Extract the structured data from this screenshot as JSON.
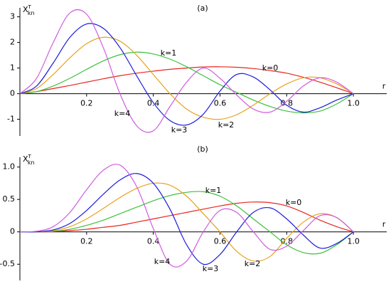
{
  "chart_data": [
    {
      "type": "line",
      "title": "(a)",
      "xlabel": "r",
      "ylabel": "X",
      "ylabel_sup": "T",
      "ylabel_sub": "kn",
      "xlim": [
        0,
        1.1
      ],
      "ylim": [
        -1.65,
        3.35
      ],
      "xticks": [
        0.2,
        0.4,
        0.6,
        0.8,
        {
          "value": 1,
          "label": "1.0"
        }
      ],
      "yticks": [
        -1,
        0,
        1,
        2,
        3
      ],
      "x": [
        0,
        0.05,
        0.1,
        0.15,
        0.2,
        0.25,
        0.3,
        0.35,
        0.4,
        0.45,
        0.5,
        0.55,
        0.6,
        0.65,
        0.7,
        0.75,
        0.8,
        0.85,
        0.9,
        0.95,
        1
      ],
      "series": [
        {
          "name": "k=0",
          "color": "#e8261f",
          "values": [
            0,
            0.08,
            0.2,
            0.32,
            0.45,
            0.58,
            0.7,
            0.8,
            0.88,
            0.95,
            1.0,
            1.04,
            1.05,
            1.03,
            0.98,
            0.9,
            0.8,
            0.64,
            0.45,
            0.23,
            0
          ]
        },
        {
          "name": "k=1",
          "color": "#3cc13c",
          "values": [
            0,
            0.08,
            0.3,
            0.6,
            0.95,
            1.28,
            1.52,
            1.62,
            1.55,
            1.35,
            1.05,
            0.7,
            0.35,
            0.05,
            -0.25,
            -0.5,
            -0.68,
            -0.75,
            -0.68,
            -0.4,
            0
          ]
        },
        {
          "name": "k=2",
          "color": "#e6a21e",
          "values": [
            0,
            0.2,
            0.75,
            1.4,
            1.95,
            2.2,
            2.05,
            1.5,
            0.75,
            0,
            -0.6,
            -0.92,
            -1.0,
            -0.82,
            -0.45,
            0,
            0.38,
            0.62,
            0.62,
            0.38,
            0
          ]
        },
        {
          "name": "k=3",
          "color": "#1c1cd9",
          "values": [
            0,
            0.3,
            1.2,
            2.2,
            2.72,
            2.55,
            1.8,
            0.7,
            -0.35,
            -1.05,
            -1.22,
            -0.8,
            0.1,
            0.75,
            0.65,
            0.15,
            -0.45,
            -0.72,
            -0.55,
            -0.25,
            0
          ]
        },
        {
          "name": "k=4",
          "color": "#d05ce0",
          "values": [
            0,
            0.6,
            2.0,
            3.15,
            3.1,
            1.8,
            0,
            -1.25,
            -1.45,
            -0.5,
            0.45,
            1.0,
            0.6,
            -0.05,
            -0.6,
            -0.72,
            -0.3,
            0.3,
            0.62,
            0.45,
            0
          ]
        }
      ]
    },
    {
      "type": "line",
      "title": "(b)",
      "xlabel": "r",
      "ylabel": "X",
      "ylabel_sup": "T",
      "ylabel_sub": "kn",
      "xlim": [
        0,
        1.1
      ],
      "ylim": [
        -0.75,
        1.15
      ],
      "xticks": [
        0.2,
        0.4,
        0.6,
        0.8,
        {
          "value": 1,
          "label": "1.0"
        }
      ],
      "yticks": [
        -0.5,
        0,
        0.5,
        {
          "value": 1,
          "label": "1.0"
        }
      ],
      "x": [
        0,
        0.05,
        0.1,
        0.15,
        0.2,
        0.25,
        0.3,
        0.35,
        0.4,
        0.45,
        0.5,
        0.55,
        0.6,
        0.65,
        0.7,
        0.75,
        0.8,
        0.85,
        0.9,
        0.95,
        1
      ],
      "series": [
        {
          "name": "k=0",
          "color": "#e8261f",
          "values": [
            0,
            0,
            0.005,
            0.02,
            0.04,
            0.07,
            0.1,
            0.15,
            0.2,
            0.25,
            0.3,
            0.35,
            0.4,
            0.44,
            0.46,
            0.45,
            0.4,
            0.3,
            0.18,
            0.08,
            0
          ]
        },
        {
          "name": "k=1",
          "color": "#3cc13c",
          "values": [
            0,
            0,
            0.01,
            0.04,
            0.1,
            0.18,
            0.28,
            0.38,
            0.48,
            0.56,
            0.61,
            0.62,
            0.55,
            0.4,
            0.2,
            0,
            -0.2,
            -0.32,
            -0.33,
            -0.2,
            0
          ]
        },
        {
          "name": "k=2",
          "color": "#e6a21e",
          "values": [
            0,
            0,
            0.02,
            0.08,
            0.2,
            0.36,
            0.53,
            0.67,
            0.75,
            0.72,
            0.55,
            0.28,
            0,
            -0.3,
            -0.45,
            -0.38,
            -0.1,
            0.15,
            0.28,
            0.22,
            0
          ]
        },
        {
          "name": "k=3",
          "color": "#1c1cd9",
          "values": [
            0,
            0,
            0.03,
            0.13,
            0.33,
            0.58,
            0.8,
            0.9,
            0.75,
            0.35,
            -0.2,
            -0.5,
            -0.35,
            0,
            0.3,
            0.37,
            0.2,
            -0.05,
            -0.25,
            -0.18,
            0
          ]
        },
        {
          "name": "k=4",
          "color": "#d05ce0",
          "values": [
            0,
            0.01,
            0.08,
            0.3,
            0.65,
            0.95,
            1.03,
            0.7,
            0.05,
            -0.5,
            -0.45,
            0,
            0.33,
            0.3,
            0,
            -0.27,
            -0.22,
            0.02,
            0.25,
            0.22,
            0
          ]
        }
      ]
    }
  ]
}
